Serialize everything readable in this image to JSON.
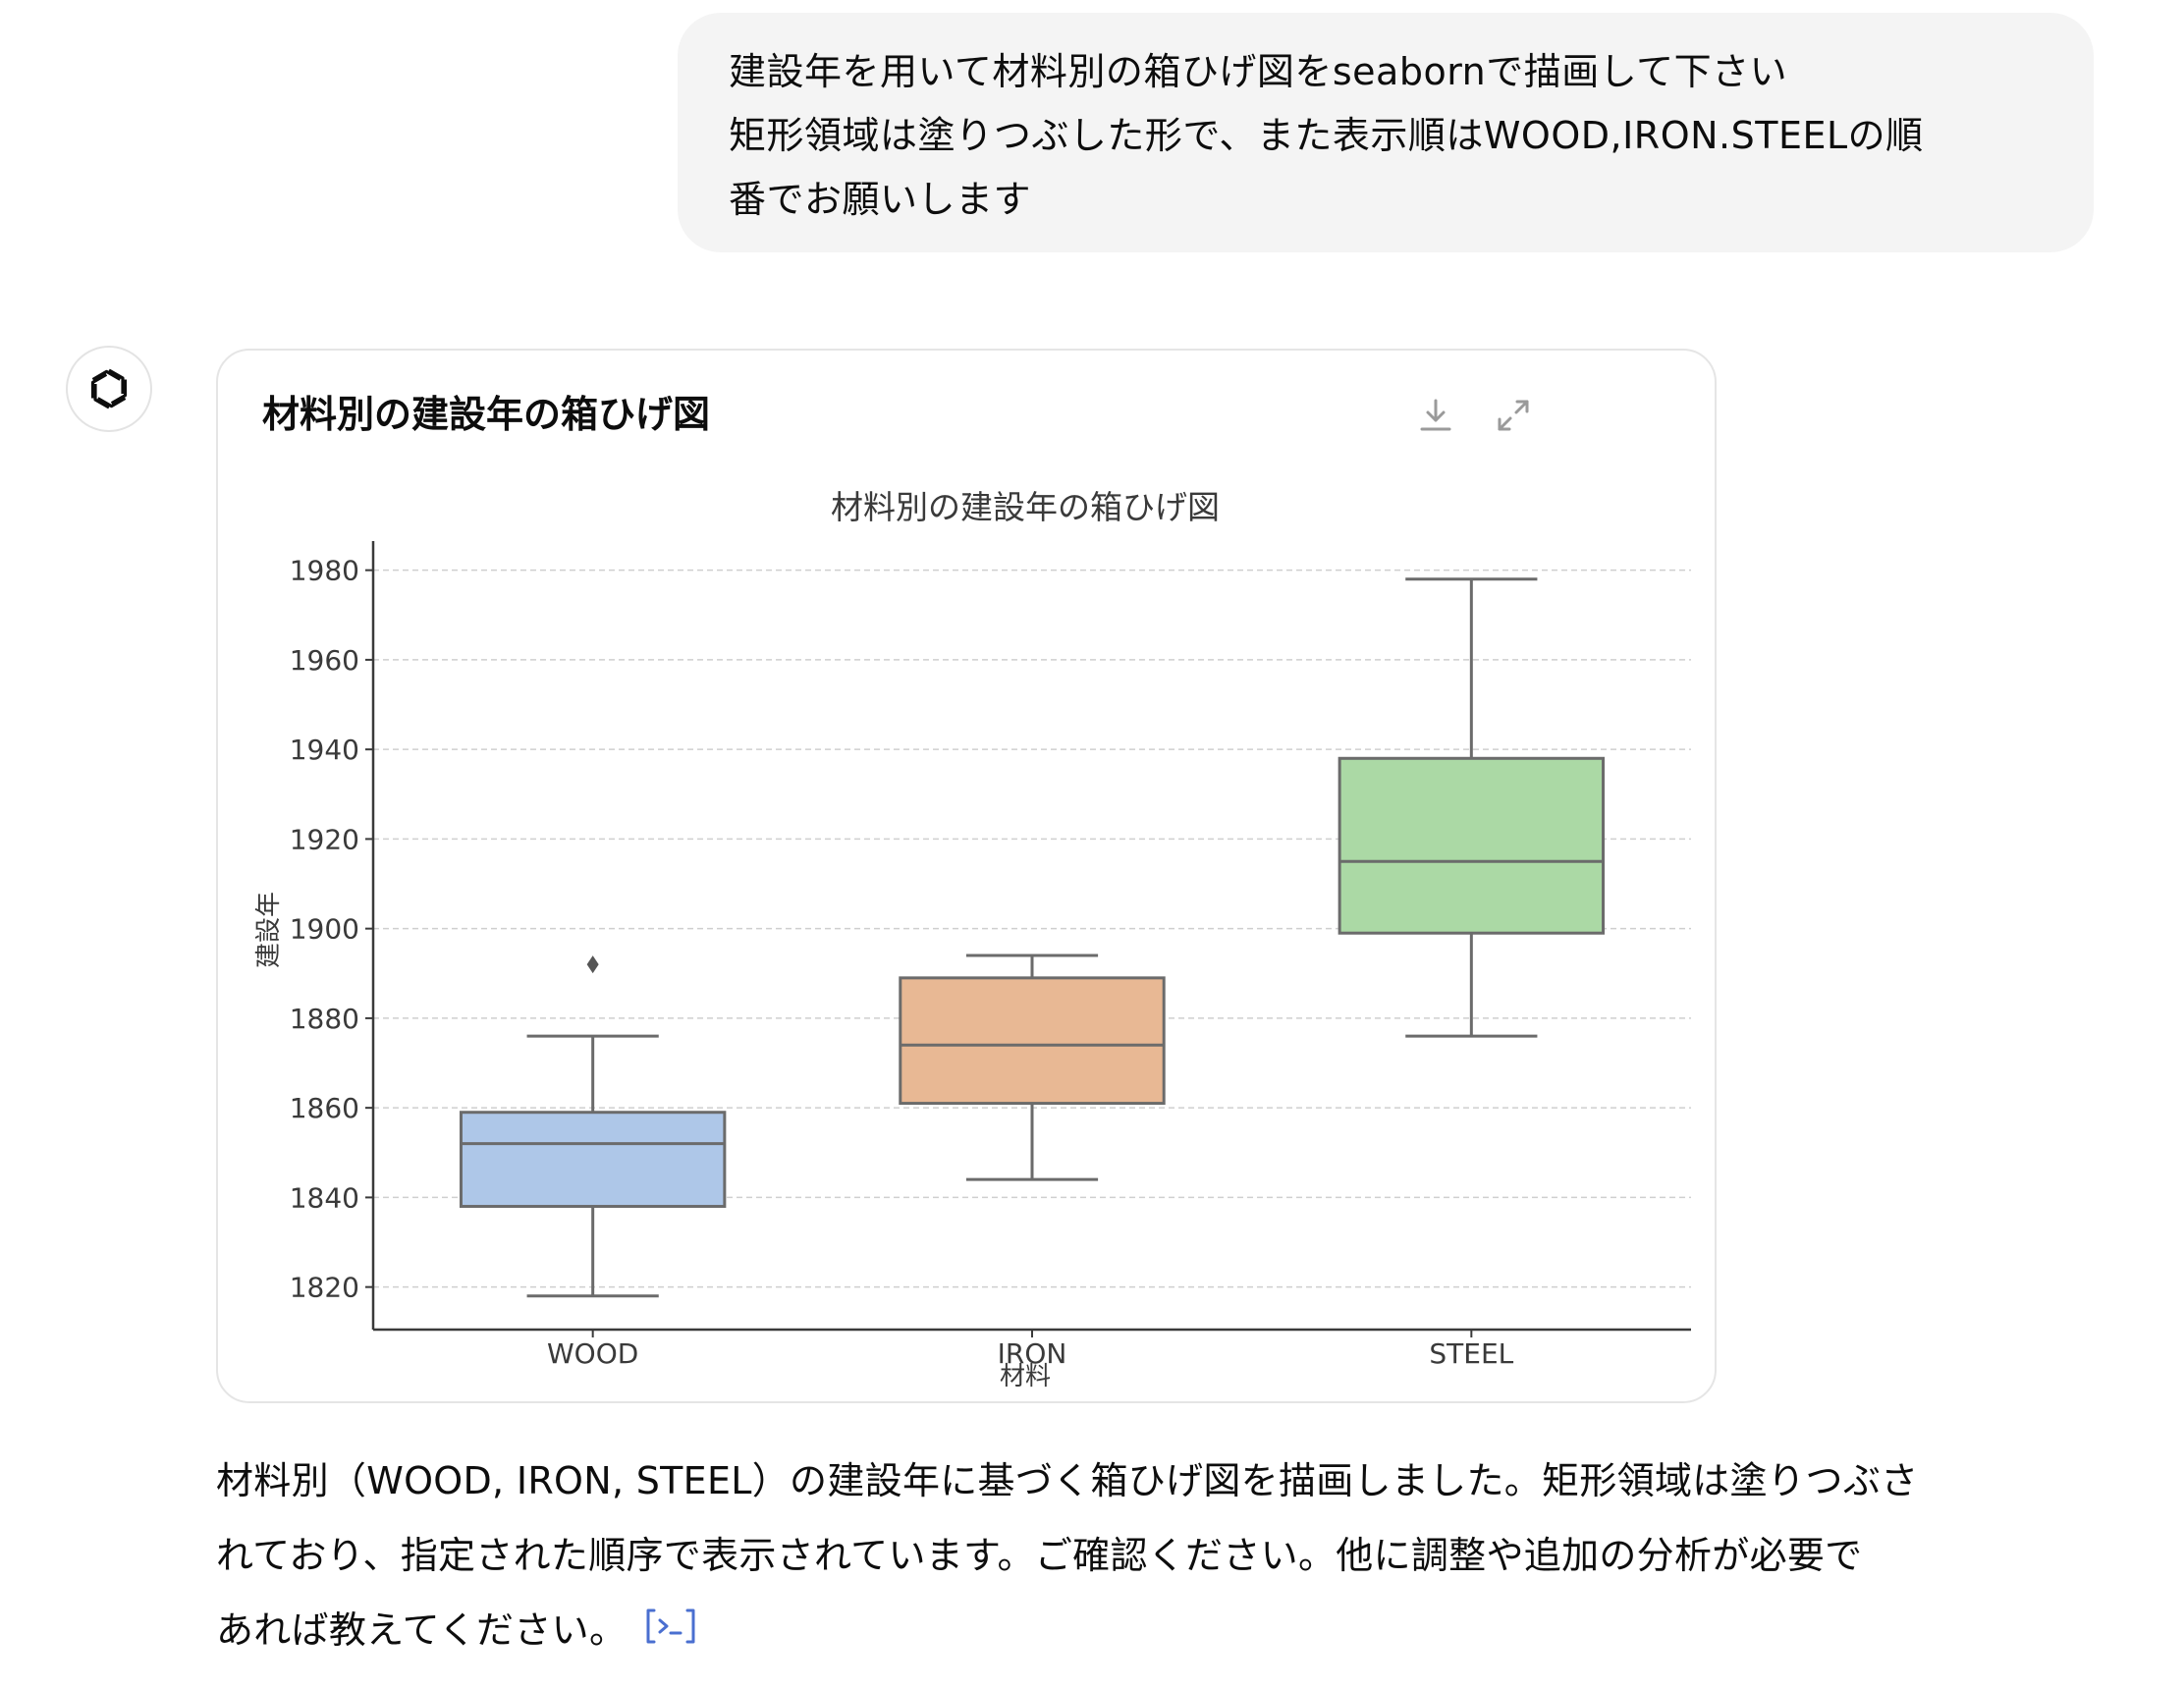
{
  "user_message": {
    "lines": [
      "建設年を用いて材料別の箱ひげ図をseabornで描画して下さい",
      "矩形領域は塗りつぶした形で、また表示順はWOOD,IRON.STEELの順",
      "番でお願いします"
    ]
  },
  "assistant": {
    "avatar_icon": "openai-logo-icon",
    "chart_card": {
      "title": "材料別の建設年の箱ひげ図",
      "download_icon": "download-icon",
      "expand_icon": "expand-icon"
    },
    "reply_lines": [
      "材料別（WOOD, IRON, STEEL）の建設年に基づく箱ひげ図を描画しました。矩形領域は塗りつぶさ",
      "れており、指定された順序で表示されています。ご確認ください。他に調整や追加の分析が必要で",
      "あれば教えてください。"
    ],
    "citation_icon": "code-interpreter-icon"
  },
  "chart_data": {
    "type": "box",
    "title": "材料別の建設年の箱ひげ図",
    "xlabel": "材料",
    "ylabel": "建設年",
    "categories": [
      "WOOD",
      "IRON",
      "STEEL"
    ],
    "colors": [
      "#aec7e8",
      "#e8b894",
      "#abd9a5"
    ],
    "boxes": [
      {
        "name": "WOOD",
        "whisker_low": 1818,
        "q1": 1838,
        "median": 1852,
        "q3": 1859,
        "whisker_high": 1876,
        "outliers": [
          1892
        ]
      },
      {
        "name": "IRON",
        "whisker_low": 1844,
        "q1": 1861,
        "median": 1874,
        "q3": 1889,
        "whisker_high": 1894,
        "outliers": []
      },
      {
        "name": "STEEL",
        "whisker_low": 1876,
        "q1": 1899,
        "median": 1915,
        "q3": 1938,
        "whisker_high": 1978,
        "outliers": []
      }
    ],
    "y_ticks": [
      1820,
      1840,
      1860,
      1880,
      1900,
      1920,
      1940,
      1960,
      1980
    ],
    "ylim": [
      1810.5,
      1986.5
    ],
    "grid": "horizontal-dashed"
  }
}
